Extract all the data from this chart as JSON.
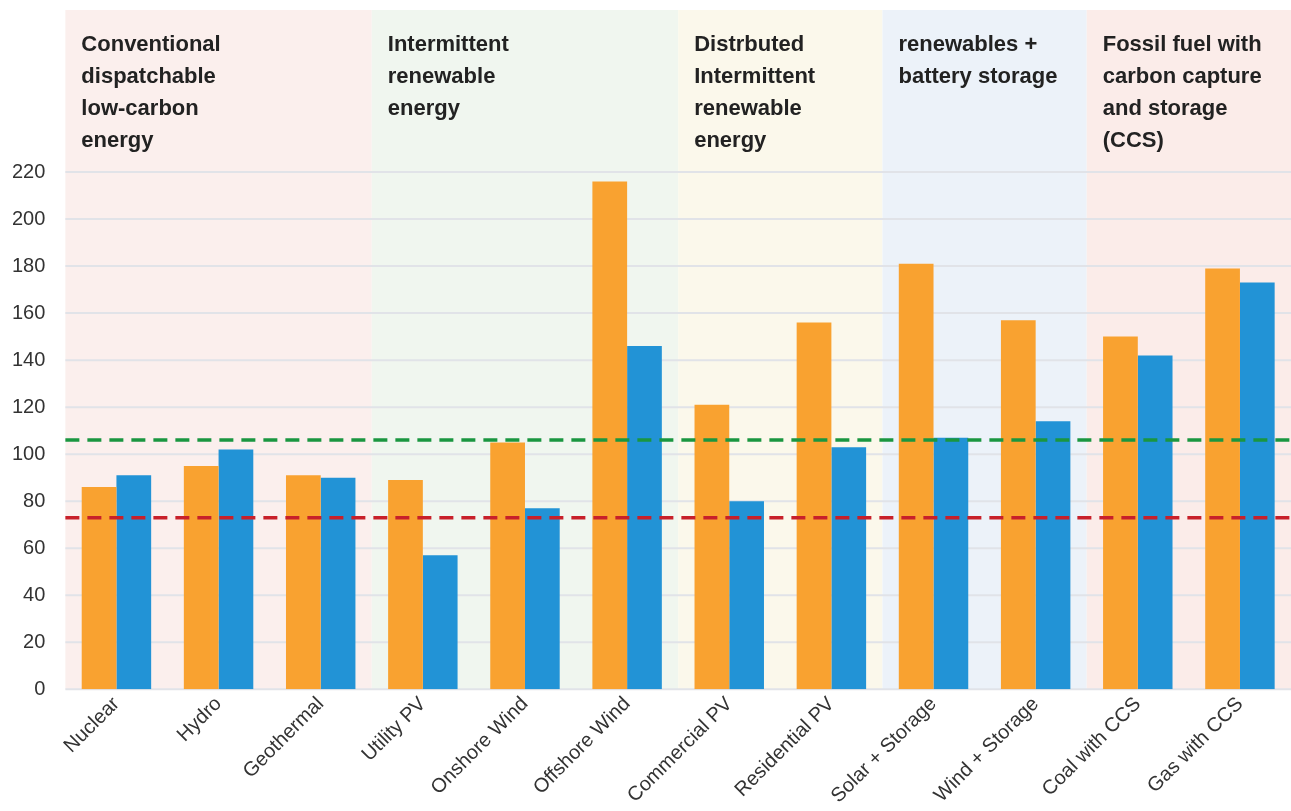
{
  "chart_data": {
    "type": "bar",
    "categories": [
      "Nuclear",
      "Hydro",
      "Geothermal",
      "Utility PV",
      "Onshore Wind",
      "Offshore Wind",
      "Commercial PV",
      "Residential PV",
      "Solar + Storage",
      "Wind + Storage",
      "Coal with CCS",
      "Gas with CCS"
    ],
    "series": [
      {
        "color": "#f9a230",
        "values": [
          86,
          95,
          91,
          89,
          105,
          216,
          121,
          156,
          181,
          157,
          150,
          179
        ]
      },
      {
        "color": "#2293d6",
        "values": [
          91,
          102,
          90,
          57,
          77,
          146,
          80,
          103,
          107,
          114,
          142,
          173
        ]
      }
    ],
    "ylim": [
      0,
      220
    ],
    "yticks": [
      0,
      20,
      40,
      60,
      80,
      100,
      120,
      140,
      160,
      180,
      200,
      220
    ],
    "grid": "y",
    "legend": false,
    "bands": [
      {
        "axis": "x",
        "from": "Nuclear",
        "to": "Geothermal",
        "label": "Conventional dispatchable low-carbon energy",
        "color": "#fbefed"
      },
      {
        "axis": "x",
        "from": "Utility PV",
        "to": "Offshore Wind",
        "label": "Intermittent renewable energy",
        "color": "#f0f6ef"
      },
      {
        "axis": "x",
        "from": "Commercial PV",
        "to": "Residential PV",
        "label": "Distrbuted Intermittent renewable energy",
        "color": "#fbf8eb"
      },
      {
        "axis": "x",
        "from": "Solar + Storage",
        "to": "Wind + Storage",
        "label": "renewables + battery storage",
        "color": "#ecf2f9"
      },
      {
        "axis": "x",
        "from": "Coal with CCS",
        "to": "Gas with CCS",
        "label": "Fossil fuel with carbon capture and storage (CCS)",
        "color": "#fbece9"
      }
    ],
    "ref_lines": [
      {
        "axis": "y",
        "value": 106,
        "color": "#1a9640",
        "line_style": "dashed"
      },
      {
        "axis": "y",
        "value": 73,
        "color": "#c8202a",
        "line_style": "dashed"
      }
    ]
  }
}
